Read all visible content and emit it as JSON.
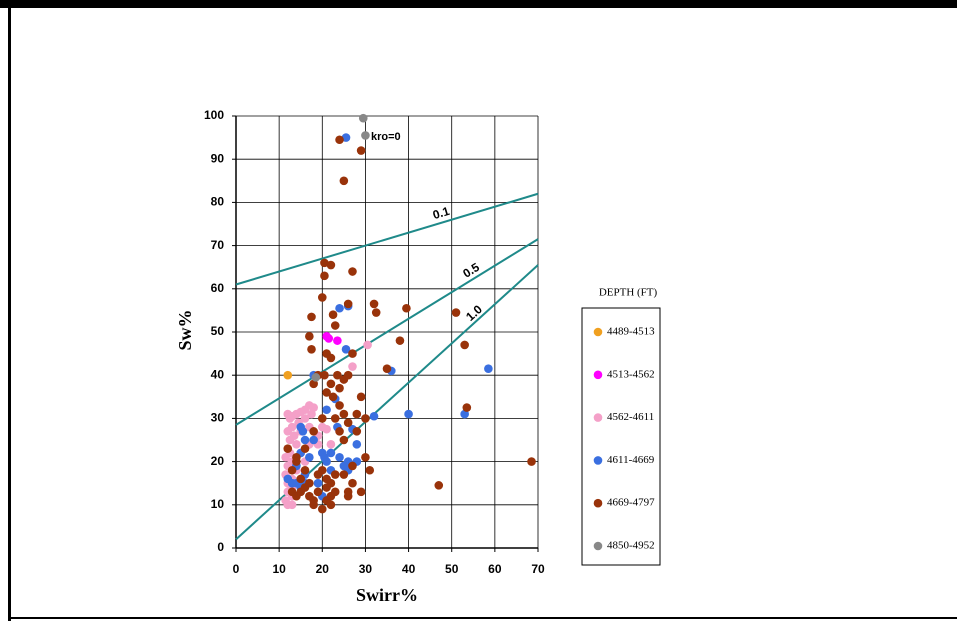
{
  "chart_data": {
    "type": "scatter",
    "xlabel": "Swirr%",
    "ylabel": "Sw%",
    "xlim": [
      0,
      70
    ],
    "ylim": [
      0,
      100
    ],
    "xticks": [
      0,
      10,
      20,
      30,
      40,
      50,
      60,
      70
    ],
    "yticks": [
      0,
      10,
      20,
      30,
      40,
      50,
      60,
      70,
      80,
      90,
      100
    ],
    "grid": true,
    "legend_title": "DEPTH (FT)",
    "legend_position": "right",
    "annotations": [
      {
        "text": "kro=0"
      }
    ],
    "lines": [
      {
        "label": "0.1",
        "color": "#1f8a8a",
        "x": [
          0,
          70
        ],
        "values": [
          61,
          82
        ]
      },
      {
        "label": "0.5",
        "color": "#1f8a8a",
        "x": [
          0,
          70
        ],
        "values": [
          28.5,
          71.5
        ]
      },
      {
        "label": "1.0",
        "color": "#1f8a8a",
        "x": [
          0,
          70
        ],
        "values": [
          2,
          65.5
        ]
      }
    ],
    "series": [
      {
        "name": "4489-4513",
        "color": "#f0a020",
        "x": [
          12
        ],
        "values": [
          40
        ]
      },
      {
        "name": "4513-4562",
        "color": "#ff00ff",
        "x": [
          21,
          23.5,
          21.5
        ],
        "values": [
          49,
          48,
          48.5
        ]
      },
      {
        "name": "4562-4611",
        "color": "#f4a0c8",
        "x": [
          12,
          12.5,
          13,
          14,
          15,
          16,
          17,
          18,
          17.5,
          16,
          14.5,
          13,
          12,
          12.5,
          12,
          11.5,
          12,
          11.5,
          12,
          12,
          11.5,
          12,
          13,
          13,
          13,
          13,
          14,
          13,
          12.5,
          14,
          13.5,
          15,
          17,
          19,
          20,
          21,
          16,
          15,
          17,
          15,
          27,
          30.5,
          19,
          22
        ],
        "values": [
          31,
          30,
          30.5,
          31,
          31.5,
          32,
          33,
          32.5,
          31,
          30,
          29,
          28,
          27,
          25,
          23,
          21,
          19,
          17,
          15,
          13,
          11,
          10,
          10,
          12,
          14,
          16,
          18,
          20,
          22,
          24,
          26,
          27,
          28,
          26,
          28,
          27.5,
          20,
          22,
          24,
          15,
          42,
          47,
          24,
          24
        ]
      },
      {
        "name": "4611-4669",
        "color": "#3a6fe0",
        "x": [
          25.5,
          24,
          26,
          25.5,
          36,
          32,
          40,
          53,
          58.5,
          23,
          21,
          15,
          15.5,
          16,
          18,
          20,
          21,
          22,
          24,
          25,
          26,
          28,
          27,
          28,
          23.5,
          12,
          13,
          14,
          15,
          16,
          17,
          14,
          15,
          19,
          20,
          22,
          18,
          20.5,
          26,
          16
        ],
        "values": [
          95,
          55.5,
          56,
          46,
          41,
          30.5,
          31,
          31,
          41.5,
          34.5,
          32,
          28,
          27,
          25,
          25,
          22,
          20,
          22,
          21,
          19,
          20,
          20,
          27.5,
          24,
          28,
          16,
          15,
          15,
          14,
          17,
          21,
          19,
          22,
          15,
          12,
          18,
          40,
          21,
          18,
          15
        ]
      },
      {
        "name": "4669-4797",
        "color": "#99330a",
        "x": [
          24,
          29,
          25,
          20.5,
          22,
          27,
          20.5,
          20,
          26,
          32,
          32.5,
          39.5,
          51,
          53,
          53.5,
          47,
          68.5,
          38,
          35,
          17.5,
          22.5,
          23,
          21,
          22,
          17,
          17.5,
          20.5,
          22,
          23.5,
          24,
          25,
          26,
          27,
          19,
          18,
          21,
          22.5,
          24,
          25,
          26,
          28,
          30,
          29,
          23,
          20,
          18,
          16,
          14,
          13,
          12,
          13,
          14,
          15,
          16,
          17,
          18,
          19,
          20,
          21,
          22,
          22,
          21,
          20,
          23,
          25,
          26,
          27,
          29,
          30,
          31,
          27,
          25,
          24,
          28,
          16,
          15,
          14,
          17,
          19,
          21,
          23,
          18,
          22,
          26
        ],
        "values": [
          94.5,
          92,
          85,
          66,
          65.5,
          64,
          63,
          58,
          56.5,
          56.5,
          54.5,
          55.5,
          54.5,
          47,
          32.5,
          14.5,
          20,
          48,
          41.5,
          53.5,
          54,
          51.5,
          45,
          44,
          49,
          46,
          40,
          38,
          40,
          37,
          39,
          40,
          45,
          40,
          38,
          36,
          35,
          33,
          31,
          29,
          31,
          30,
          35,
          30,
          30,
          27,
          23,
          21,
          18,
          23,
          13,
          12,
          13,
          14,
          12,
          11,
          13,
          9,
          11,
          12,
          15,
          16,
          18,
          17,
          17,
          13,
          15,
          13,
          21,
          18,
          19,
          25,
          27,
          27,
          18,
          16,
          20,
          15,
          17,
          14,
          13,
          10,
          10,
          12
        ]
      },
      {
        "name": "4850-4952",
        "color": "#888888",
        "x": [
          29.5,
          30,
          18.5
        ],
        "values": [
          99.5,
          95.5,
          39.5
        ]
      }
    ]
  }
}
